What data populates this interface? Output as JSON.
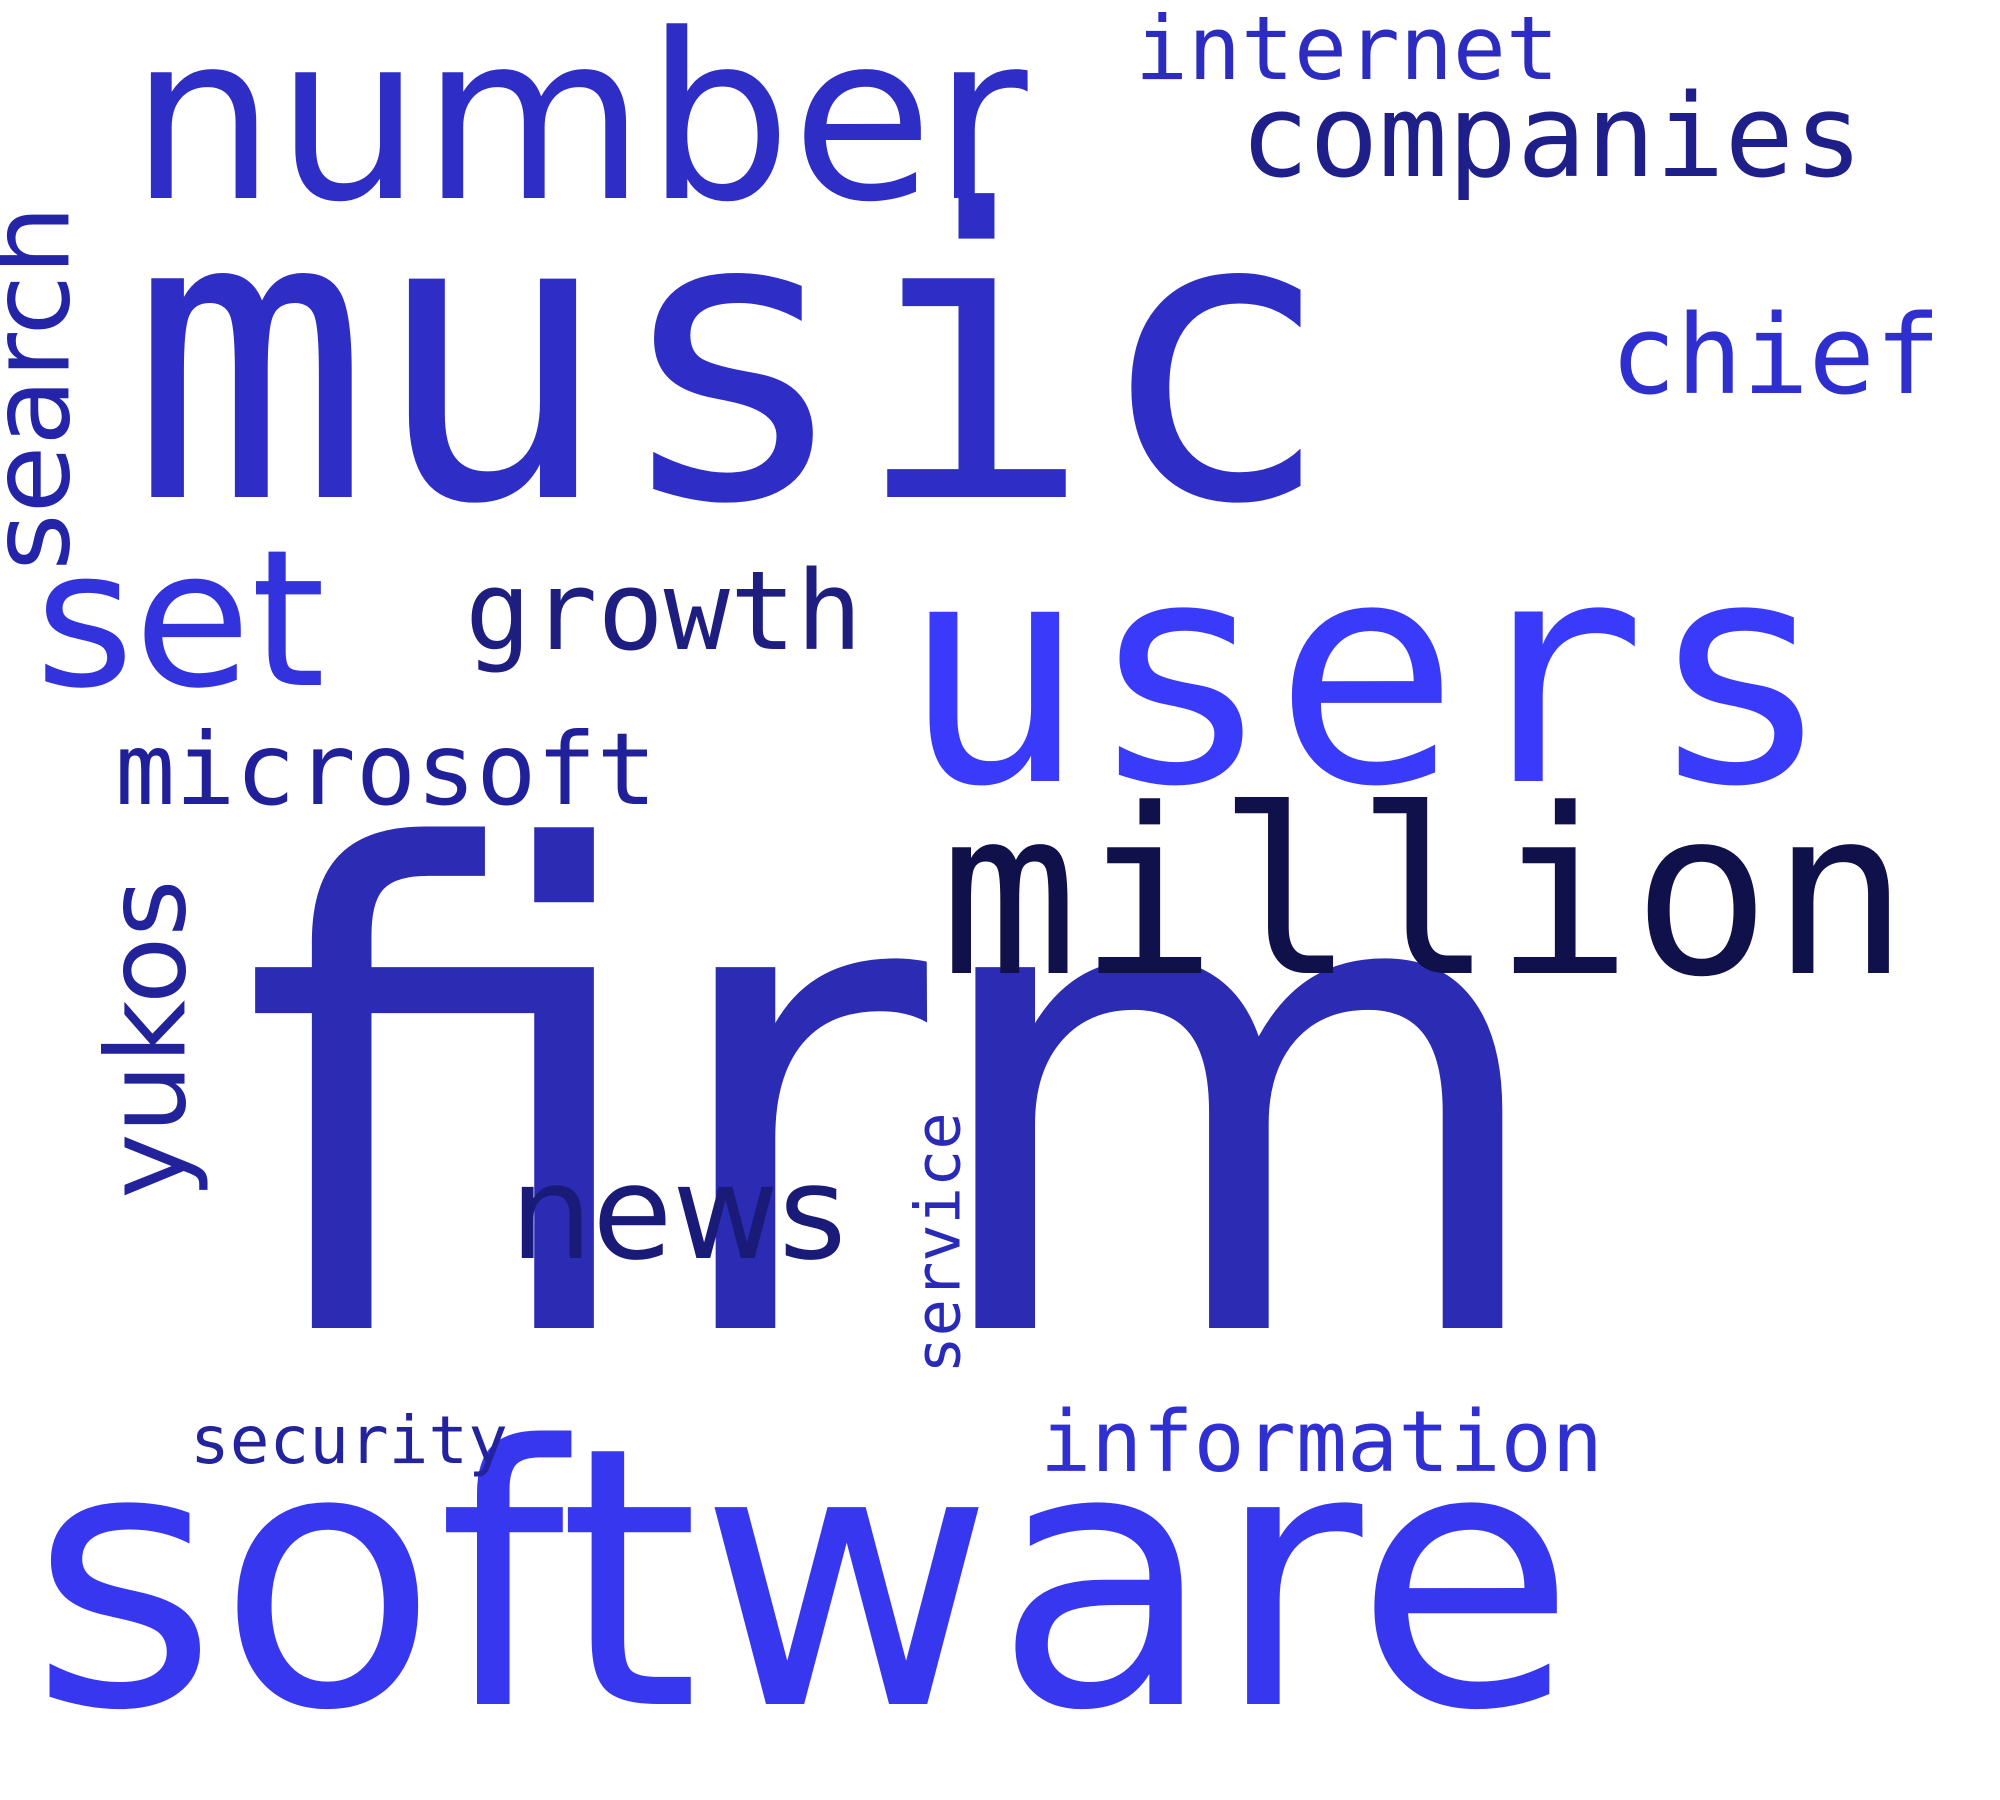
{
  "words": {
    "firm": {
      "text": "firm",
      "color": "#2b2bb3"
    },
    "music": {
      "text": "music",
      "color": "#2e2ec6"
    },
    "software": {
      "text": "software",
      "color": "#3737f0"
    },
    "users": {
      "text": "users",
      "color": "#3a3afa"
    },
    "number": {
      "text": "number",
      "color": "#2e2ec6"
    },
    "million": {
      "text": "million",
      "color": "#10104a"
    },
    "set": {
      "text": "set",
      "color": "#3333dd"
    },
    "search": {
      "text": "search",
      "color": "#2424a8"
    },
    "yukos": {
      "text": "yukos",
      "color": "#22229a"
    },
    "companies": {
      "text": "companies",
      "color": "#1f1f8a"
    },
    "news": {
      "text": "news",
      "color": "#1a1a78"
    },
    "growth": {
      "text": "growth",
      "color": "#1e1e80"
    },
    "chief": {
      "text": "chief",
      "color": "#2f2fd0"
    },
    "microsoft": {
      "text": "microsoft",
      "color": "#20209a"
    },
    "internet": {
      "text": "internet",
      "color": "#2c2cc0"
    },
    "information": {
      "text": "information",
      "color": "#3030d2"
    },
    "security": {
      "text": "security",
      "color": "#23239e"
    },
    "service": {
      "text": "service",
      "color": "#2a2ab8"
    }
  }
}
